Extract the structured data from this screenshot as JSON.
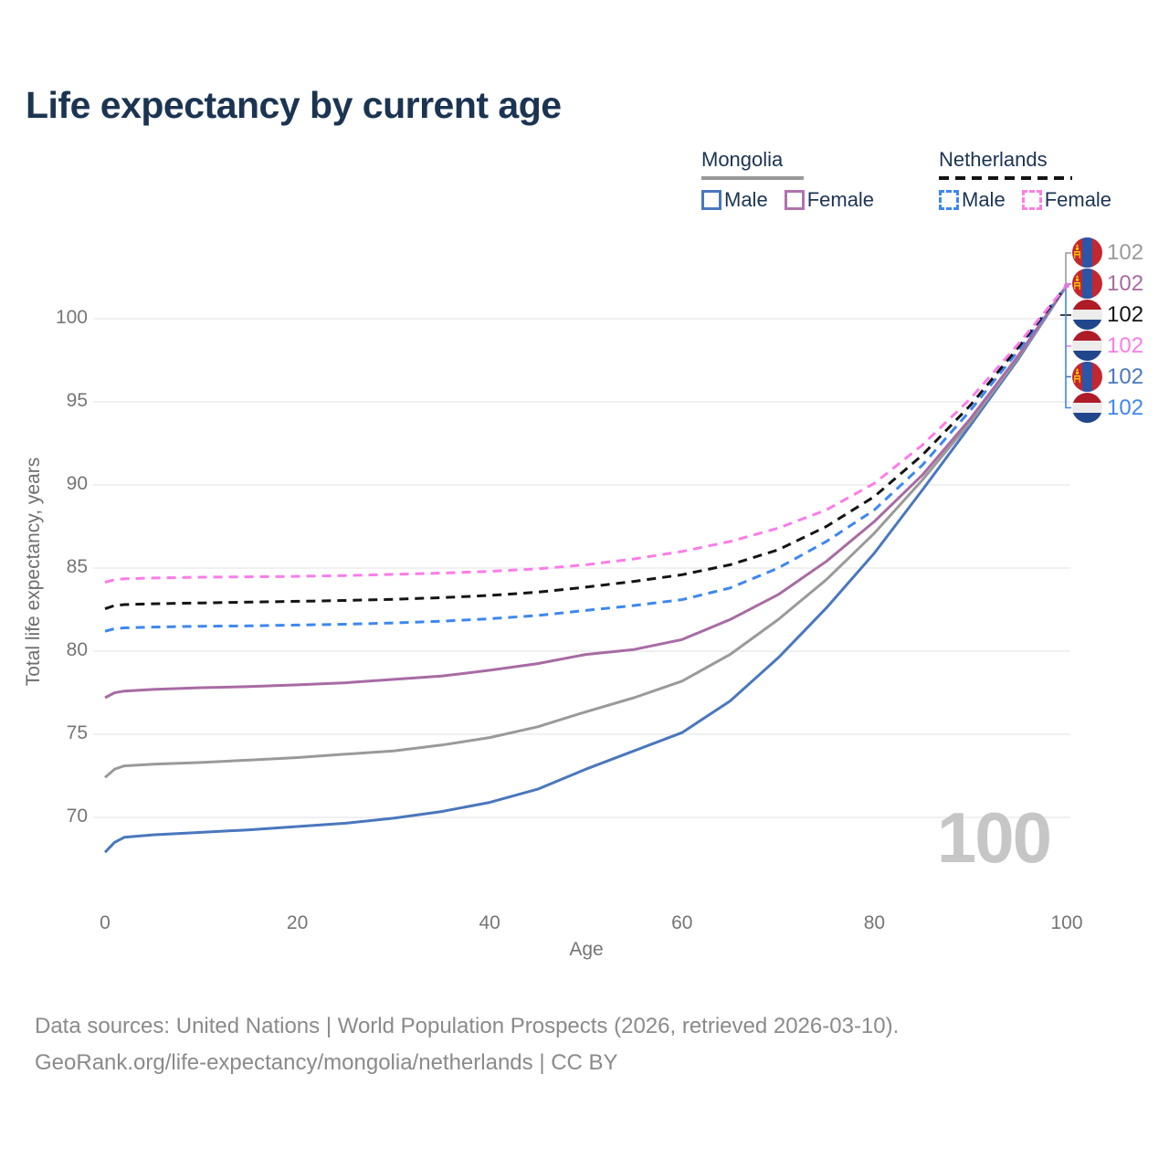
{
  "title": "Life expectancy by current age",
  "legend": {
    "mongolia": {
      "country": "Mongolia",
      "male": "Male",
      "female": "Female"
    },
    "netherlands": {
      "country": "Netherlands",
      "male": "Male",
      "female": "Female"
    }
  },
  "axes": {
    "xlabel": "Age",
    "ylabel": "Total life expectancy, years",
    "x_ticks": [
      0,
      20,
      40,
      60,
      80,
      100
    ],
    "y_ticks": [
      100,
      95,
      90,
      85,
      80,
      75,
      70
    ]
  },
  "watermark": "100",
  "footer": {
    "line1": "Data sources: United Nations | World Population Prospects (2026, retrieved 2026-03-10).",
    "line2": "GeoRank.org/life-expectancy/mongolia/netherlands | CC BY"
  },
  "colors": {
    "title_text": "#1b3452",
    "tick_text": "#757575",
    "gridline": "#e8e8e8",
    "mongolia_male": "#4a77bd",
    "mongolia_female": "#a86ba3",
    "mongolia_both": "#9a9a9a",
    "netherlands_male": "#3d87f0",
    "netherlands_female": "#fb7ce8",
    "netherlands_both": "#141414",
    "watermark": "#c6c6c6"
  },
  "end_labels": [
    {
      "value": "102",
      "country": "mongolia",
      "series": "both",
      "color": "#9a9a9a"
    },
    {
      "value": "102",
      "country": "mongolia",
      "series": "female",
      "color": "#a86ba3"
    },
    {
      "value": "102",
      "country": "netherlands",
      "series": "both",
      "color": "#141414"
    },
    {
      "value": "102",
      "country": "netherlands",
      "series": "female",
      "color": "#fb7ce8"
    },
    {
      "value": "102",
      "country": "mongolia",
      "series": "male",
      "color": "#4a77bd"
    },
    {
      "value": "102",
      "country": "netherlands",
      "series": "male",
      "color": "#3d87f0"
    }
  ],
  "chart_data": {
    "type": "line",
    "title": "Life expectancy by current age",
    "xlabel": "Age",
    "ylabel": "Total life expectancy, years",
    "xlim": [
      0,
      100
    ],
    "ylim": [
      66,
      103
    ],
    "x_ticks": [
      0,
      20,
      40,
      60,
      80,
      100
    ],
    "y_ticks": [
      70,
      75,
      80,
      85,
      90,
      95,
      100
    ],
    "grid": "horizontal",
    "legend_position": "top-right",
    "series": [
      {
        "name": "Mongolia Male",
        "country": "Mongolia",
        "sex": "Male",
        "style": "solid",
        "color": "#4a77bd",
        "end_label": 102,
        "points": [
          [
            0,
            67.9
          ],
          [
            1,
            68.5
          ],
          [
            2,
            68.8
          ],
          [
            5,
            68.95
          ],
          [
            10,
            69.1
          ],
          [
            15,
            69.25
          ],
          [
            20,
            69.45
          ],
          [
            25,
            69.65
          ],
          [
            30,
            69.95
          ],
          [
            35,
            70.35
          ],
          [
            40,
            70.9
          ],
          [
            45,
            71.7
          ],
          [
            50,
            72.9
          ],
          [
            55,
            74.0
          ],
          [
            60,
            75.1
          ],
          [
            65,
            77.0
          ],
          [
            70,
            79.6
          ],
          [
            75,
            82.6
          ],
          [
            80,
            85.9
          ],
          [
            85,
            89.7
          ],
          [
            90,
            93.6
          ],
          [
            95,
            97.6
          ],
          [
            100,
            102
          ]
        ]
      },
      {
        "name": "Mongolia Both sexes",
        "country": "Mongolia",
        "sex": "Both",
        "style": "solid",
        "color": "#9a9a9a",
        "end_label": 102,
        "points": [
          [
            0,
            72.4
          ],
          [
            1,
            72.9
          ],
          [
            2,
            73.1
          ],
          [
            5,
            73.2
          ],
          [
            10,
            73.3
          ],
          [
            15,
            73.45
          ],
          [
            20,
            73.6
          ],
          [
            25,
            73.8
          ],
          [
            30,
            74.0
          ],
          [
            35,
            74.35
          ],
          [
            40,
            74.8
          ],
          [
            45,
            75.45
          ],
          [
            50,
            76.35
          ],
          [
            55,
            77.2
          ],
          [
            60,
            78.2
          ],
          [
            65,
            79.8
          ],
          [
            70,
            81.9
          ],
          [
            75,
            84.3
          ],
          [
            80,
            87.1
          ],
          [
            85,
            90.3
          ],
          [
            90,
            93.8
          ],
          [
            95,
            97.7
          ],
          [
            100,
            102
          ]
        ]
      },
      {
        "name": "Mongolia Female",
        "country": "Mongolia",
        "sex": "Female",
        "style": "solid",
        "color": "#a86ba3",
        "end_label": 102,
        "points": [
          [
            0,
            77.2
          ],
          [
            1,
            77.5
          ],
          [
            2,
            77.6
          ],
          [
            5,
            77.7
          ],
          [
            10,
            77.8
          ],
          [
            15,
            77.87
          ],
          [
            20,
            77.97
          ],
          [
            25,
            78.1
          ],
          [
            30,
            78.3
          ],
          [
            35,
            78.5
          ],
          [
            40,
            78.85
          ],
          [
            45,
            79.25
          ],
          [
            50,
            79.8
          ],
          [
            55,
            80.1
          ],
          [
            60,
            80.7
          ],
          [
            65,
            81.9
          ],
          [
            70,
            83.4
          ],
          [
            75,
            85.4
          ],
          [
            80,
            87.8
          ],
          [
            85,
            90.6
          ],
          [
            90,
            94.0
          ],
          [
            95,
            97.8
          ],
          [
            100,
            102
          ]
        ]
      },
      {
        "name": "Netherlands Male",
        "country": "Netherlands",
        "sex": "Male",
        "style": "dashed",
        "color": "#3d87f0",
        "end_label": 102,
        "points": [
          [
            0,
            81.2
          ],
          [
            1,
            81.35
          ],
          [
            2,
            81.4
          ],
          [
            5,
            81.45
          ],
          [
            10,
            81.5
          ],
          [
            15,
            81.52
          ],
          [
            20,
            81.57
          ],
          [
            25,
            81.62
          ],
          [
            30,
            81.7
          ],
          [
            35,
            81.8
          ],
          [
            40,
            81.95
          ],
          [
            45,
            82.15
          ],
          [
            50,
            82.45
          ],
          [
            55,
            82.75
          ],
          [
            60,
            83.1
          ],
          [
            65,
            83.8
          ],
          [
            70,
            85.0
          ],
          [
            75,
            86.6
          ],
          [
            80,
            88.5
          ],
          [
            85,
            91.2
          ],
          [
            90,
            94.5
          ],
          [
            95,
            98.1
          ],
          [
            100,
            102
          ]
        ]
      },
      {
        "name": "Netherlands Both sexes",
        "country": "Netherlands",
        "sex": "Both",
        "style": "dashed",
        "color": "#141414",
        "end_label": 102,
        "points": [
          [
            0,
            82.55
          ],
          [
            1,
            82.75
          ],
          [
            2,
            82.8
          ],
          [
            5,
            82.85
          ],
          [
            10,
            82.9
          ],
          [
            15,
            82.95
          ],
          [
            20,
            83.0
          ],
          [
            25,
            83.05
          ],
          [
            30,
            83.12
          ],
          [
            35,
            83.22
          ],
          [
            40,
            83.35
          ],
          [
            45,
            83.55
          ],
          [
            50,
            83.85
          ],
          [
            55,
            84.2
          ],
          [
            60,
            84.6
          ],
          [
            65,
            85.2
          ],
          [
            70,
            86.1
          ],
          [
            75,
            87.5
          ],
          [
            80,
            89.3
          ],
          [
            85,
            91.8
          ],
          [
            90,
            94.8
          ],
          [
            95,
            98.3
          ],
          [
            100,
            102
          ]
        ]
      },
      {
        "name": "Netherlands Female",
        "country": "Netherlands",
        "sex": "Female",
        "style": "dashed",
        "color": "#fb7ce8",
        "end_label": 102,
        "points": [
          [
            0,
            84.15
          ],
          [
            1,
            84.3
          ],
          [
            2,
            84.35
          ],
          [
            5,
            84.4
          ],
          [
            10,
            84.45
          ],
          [
            15,
            84.47
          ],
          [
            20,
            84.5
          ],
          [
            25,
            84.55
          ],
          [
            30,
            84.62
          ],
          [
            35,
            84.7
          ],
          [
            40,
            84.8
          ],
          [
            45,
            84.95
          ],
          [
            50,
            85.2
          ],
          [
            55,
            85.55
          ],
          [
            60,
            86.0
          ],
          [
            65,
            86.6
          ],
          [
            70,
            87.4
          ],
          [
            75,
            88.5
          ],
          [
            80,
            90.1
          ],
          [
            85,
            92.4
          ],
          [
            90,
            95.2
          ],
          [
            95,
            98.5
          ],
          [
            100,
            102
          ]
        ]
      }
    ]
  }
}
